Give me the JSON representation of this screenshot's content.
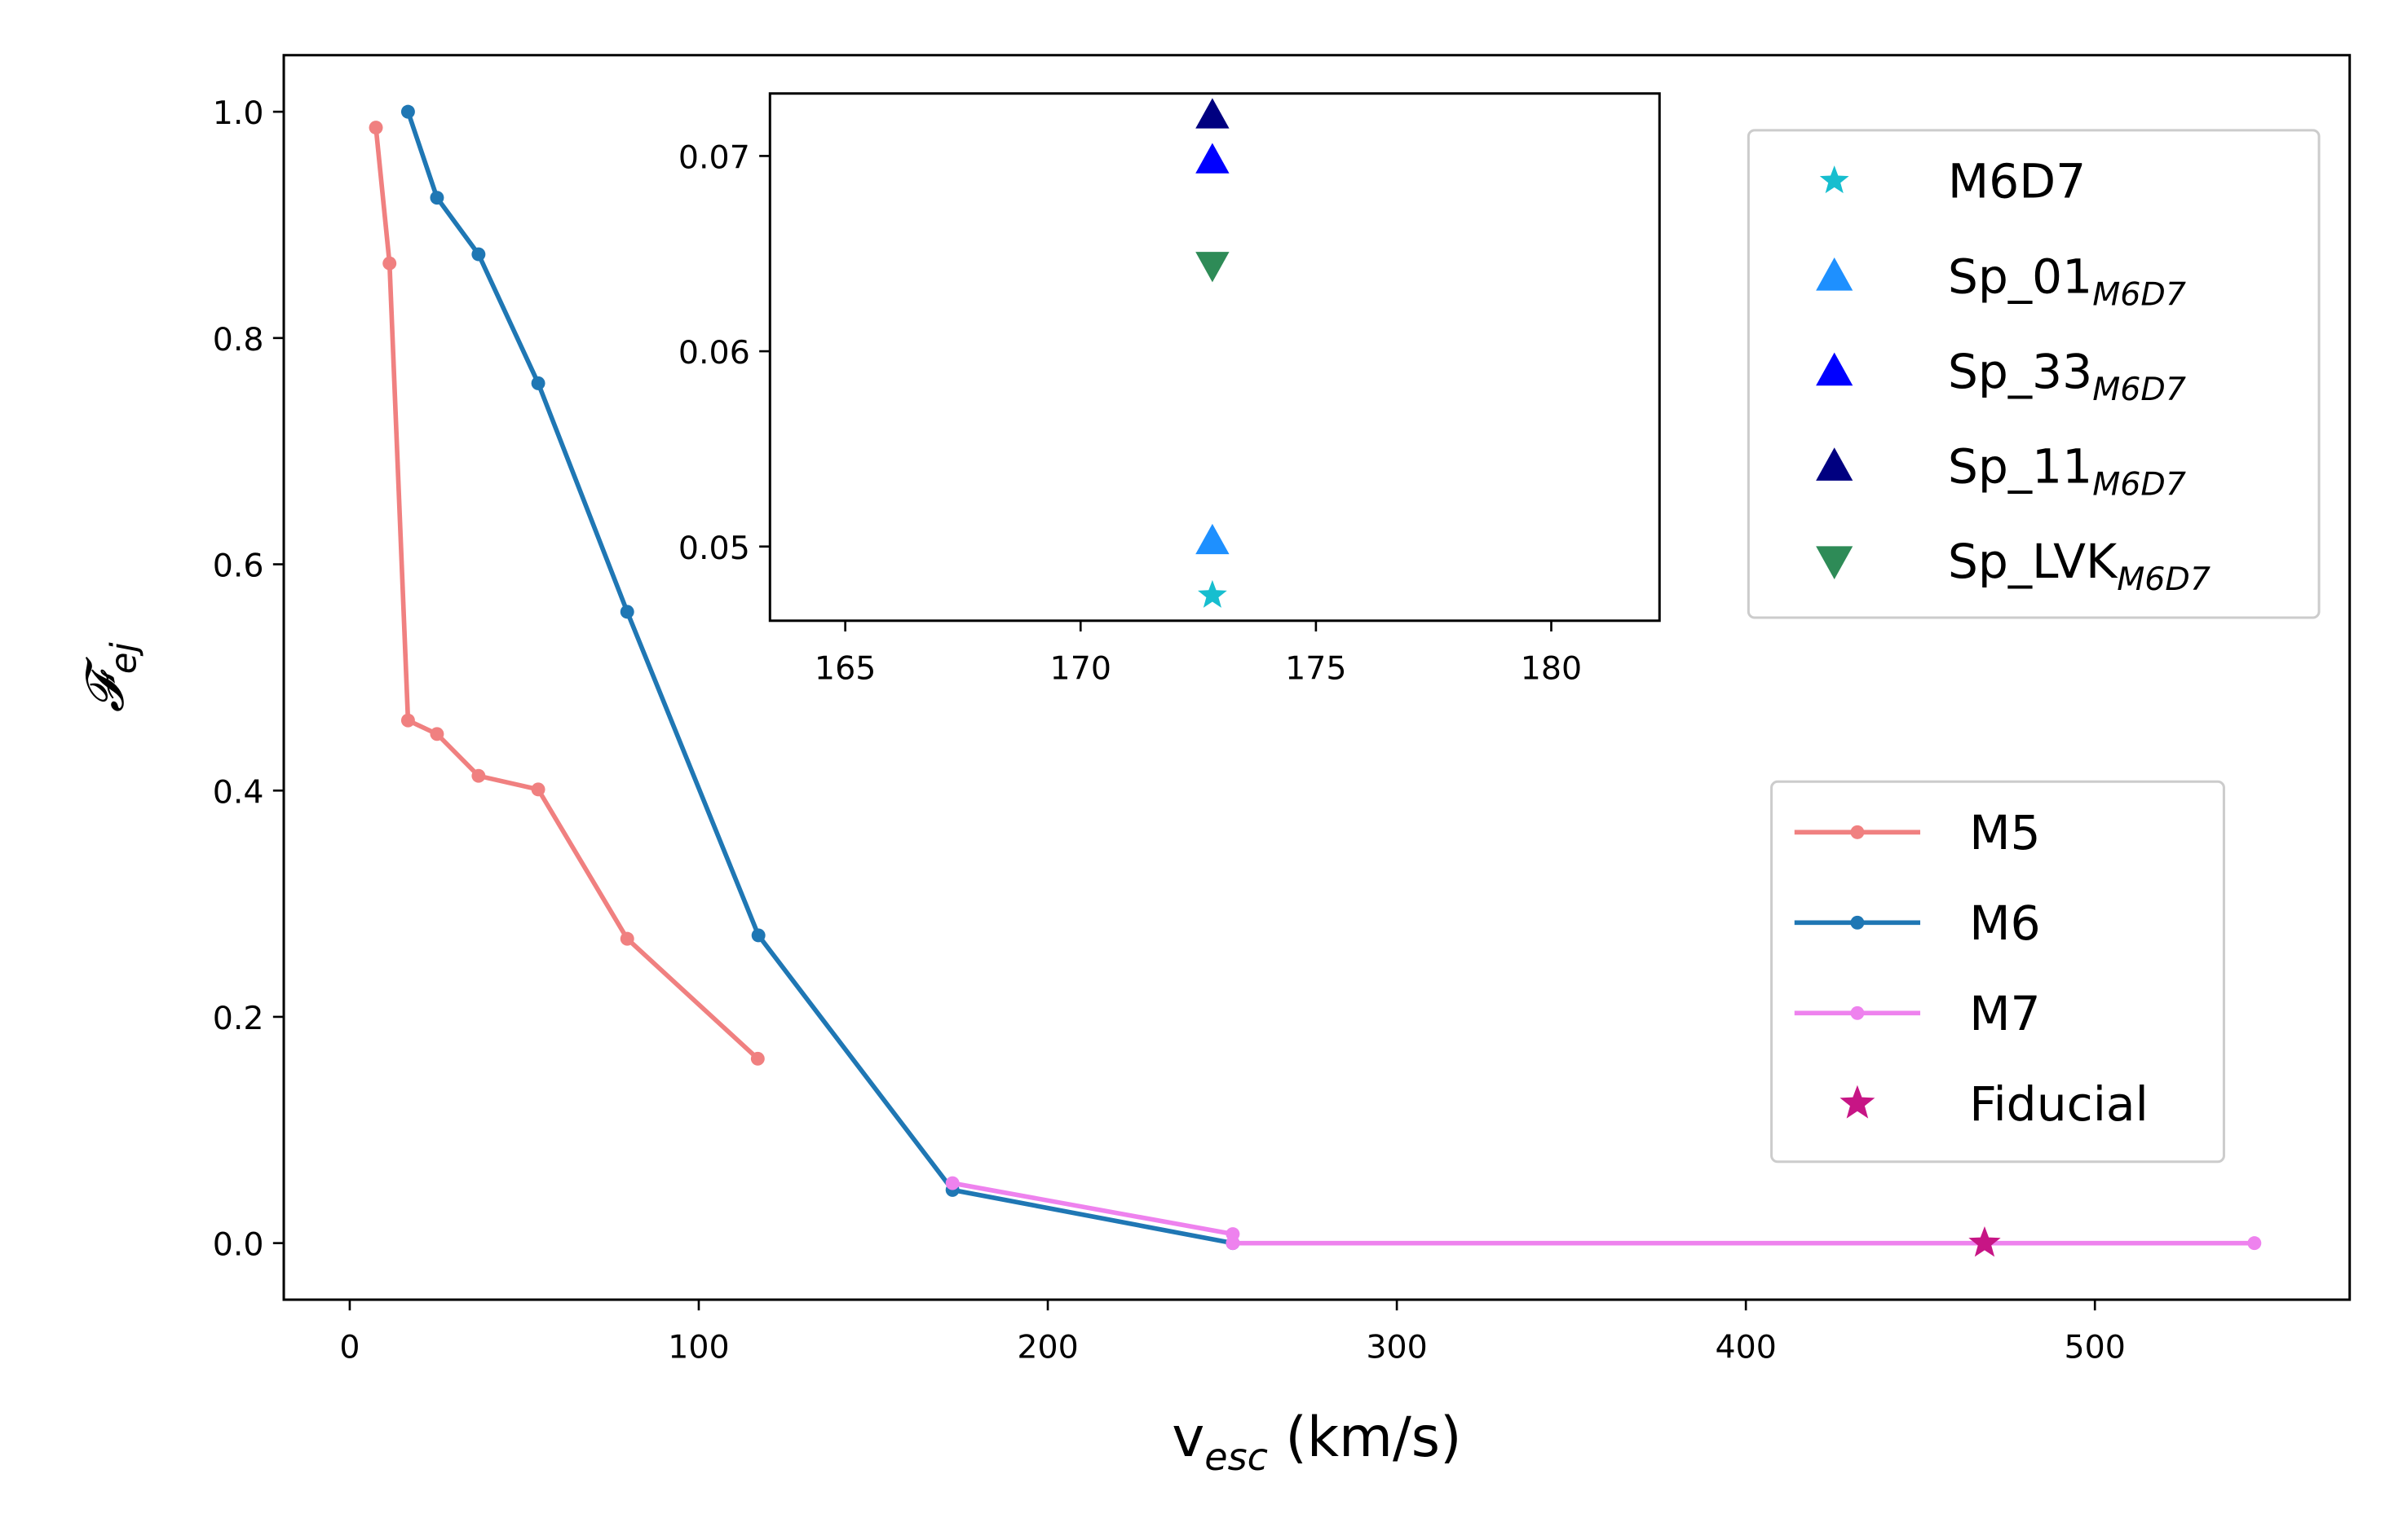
{
  "chart_data": [
    {
      "type": "line",
      "x_label": {
        "text": "v",
        "subscript": "esc",
        "suffix": " (km/s)"
      },
      "y_label": {
        "text": "𝓕",
        "subscript": "ej"
      },
      "xlim": [
        -18.9,
        573
      ],
      "ylim": [
        -0.05,
        1.05
      ],
      "xticks": [
        0,
        100,
        200,
        300,
        400,
        500
      ],
      "yticks": [
        {
          "value": 0,
          "label": "0.0"
        },
        0.2,
        0.4,
        0.6,
        0.8,
        {
          "value": 1,
          "label": "1.0"
        }
      ],
      "legend": "lower right",
      "series": [
        {
          "name": "M5",
          "color": "#f08080",
          "marker": "o",
          "x": [
            7.5,
            11.4,
            16.7,
            25,
            36.9,
            54,
            79.5,
            116.9
          ],
          "values": [
            0.986,
            0.866,
            0.462,
            0.45,
            0.413,
            0.401,
            0.269,
            0.163
          ]
        },
        {
          "name": "M6",
          "color": "#1f77b4",
          "marker": "o",
          "x": [
            16.7,
            25,
            36.9,
            54,
            79.5,
            117.1,
            172.7,
            253
          ],
          "values": [
            1.0,
            0.924,
            0.874,
            0.76,
            0.558,
            0.272,
            0.047,
            0.0
          ]
        },
        {
          "name": "M7",
          "color": "#ee82ee",
          "marker": "o",
          "x": [
            172.7,
            253,
            253,
            545.7
          ],
          "values": [
            0.053,
            0.008,
            0.0,
            0.0
          ]
        },
        {
          "name": "Fiducial",
          "color": "#c71585",
          "marker": "*",
          "x": [
            468.4
          ],
          "values": [
            0.0
          ]
        }
      ]
    },
    {
      "type": "scatter",
      "xlim": [
        163.4,
        182.3
      ],
      "ylim": [
        0.0462,
        0.0732
      ],
      "xticks": [
        165,
        170,
        175,
        180
      ],
      "yticks": [
        0.05,
        0.06,
        0.07
      ],
      "legend": "upper right",
      "series": [
        {
          "name": "M6D7",
          "color": "#17becf",
          "marker": "*",
          "x": [
            172.8
          ],
          "values": [
            0.0475
          ]
        },
        {
          "name": "Sp_01",
          "subscript": "M6D7",
          "color": "#1e90ff",
          "marker": "^",
          "x": [
            172.8
          ],
          "values": [
            0.0503
          ]
        },
        {
          "name": "Sp_33",
          "subscript": "M6D7",
          "color": "#0000ff",
          "marker": "^",
          "x": [
            172.8
          ],
          "values": [
            0.0698
          ]
        },
        {
          "name": "Sp_11",
          "subscript": "M6D7",
          "color": "#000080",
          "marker": "^",
          "x": [
            172.8
          ],
          "values": [
            0.0721
          ]
        },
        {
          "name": "Sp_LVK",
          "subscript": "M6D7",
          "color": "#2e8b57",
          "marker": "v",
          "x": [
            172.8
          ],
          "values": [
            0.0644
          ]
        }
      ]
    }
  ]
}
